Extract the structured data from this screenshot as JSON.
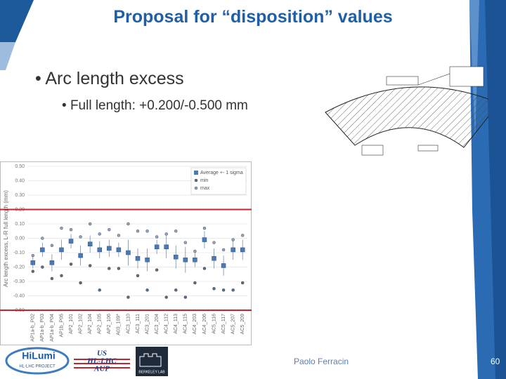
{
  "slide": {
    "title": "Proposal for “disposition” values",
    "bullet": "Arc length excess",
    "sub_bullet": "Full length: +0.200/-0.500 mm",
    "author": "Paolo Ferracin",
    "page_number": "60",
    "logos": [
      "HiLumi",
      "HL-LHC PROJECT",
      "US",
      "HL-LHC",
      "AUP",
      "BERKELEY LAB"
    ]
  },
  "chart_data": {
    "type": "errorbar",
    "y_label": "Arc length excess, L-R full length (mm)",
    "categories": [
      "AP1a-b_P02",
      "AP1a-b_P03",
      "AP1a-b_P04",
      "AP1b_P05",
      "AP2_101",
      "AP2_102",
      "AP2_104",
      "AP2_105",
      "AP2_106",
      "A03_109*",
      "AC3_110",
      "AC3_111",
      "AC3_201",
      "AC3_204",
      "AC4_112",
      "AC4_113",
      "AC4_115",
      "AC4_203",
      "AC4_206",
      "AC5_116",
      "AC5_117",
      "AC5_207",
      "AC5_209"
    ],
    "series": [
      {
        "name": "Average +- 1 sigma",
        "color": "#4a7ab5",
        "values": [
          -0.17,
          -0.08,
          -0.17,
          -0.08,
          -0.02,
          -0.12,
          -0.04,
          -0.08,
          -0.07,
          -0.08,
          -0.1,
          -0.14,
          -0.15,
          -0.06,
          -0.06,
          -0.13,
          -0.15,
          -0.15,
          -0.01,
          -0.14,
          -0.19,
          -0.08,
          -0.08
        ],
        "errors": [
          0.04,
          0.05,
          0.06,
          0.07,
          0.05,
          0.07,
          0.06,
          0.06,
          0.06,
          0.05,
          0.09,
          0.07,
          0.08,
          0.05,
          0.08,
          0.08,
          0.09,
          0.05,
          0.06,
          0.07,
          0.07,
          0.07,
          0.07
        ]
      },
      {
        "name": "min",
        "color": "#5a6f86",
        "values": [
          -0.23,
          -0.2,
          -0.28,
          -0.26,
          -0.18,
          -0.31,
          -0.19,
          -0.36,
          -0.21,
          -0.21,
          -0.41,
          -0.26,
          -0.36,
          -0.22,
          -0.41,
          -0.36,
          -0.41,
          -0.31,
          -0.21,
          -0.35,
          -0.36,
          -0.36,
          -0.31
        ]
      },
      {
        "name": "max",
        "color": "#8fa7c2",
        "values": [
          -0.12,
          0.0,
          -0.05,
          0.07,
          0.06,
          0.01,
          0.1,
          0.03,
          0.06,
          0.02,
          0.1,
          0.05,
          0.05,
          0.01,
          0.03,
          0.05,
          -0.03,
          -0.09,
          0.07,
          -0.03,
          -0.08,
          -0.01,
          0.02
        ]
      }
    ],
    "reference_lines": [
      0.2,
      -0.5
    ],
    "reference_color": "#c0262d",
    "ylim": [
      -0.5,
      0.5
    ],
    "yticks": [
      {
        "value": 0.5,
        "label": "0.50"
      },
      {
        "value": 0.4,
        "label": "0.40"
      },
      {
        "value": 0.3,
        "label": "0.30"
      },
      {
        "value": 0.2,
        "label": "0.20"
      },
      {
        "value": 0.1,
        "label": "0.10"
      },
      {
        "value": 0,
        "label": "0.00"
      },
      {
        "value": -0.1,
        "label": "-0.10"
      },
      {
        "value": -0.2,
        "label": "-0.20"
      },
      {
        "value": -0.3,
        "label": "-0.30"
      },
      {
        "value": -0.4,
        "label": "-0.40"
      },
      {
        "value": -0.5,
        "label": "-0.50"
      }
    ],
    "grid": true,
    "legend": "upper right"
  }
}
